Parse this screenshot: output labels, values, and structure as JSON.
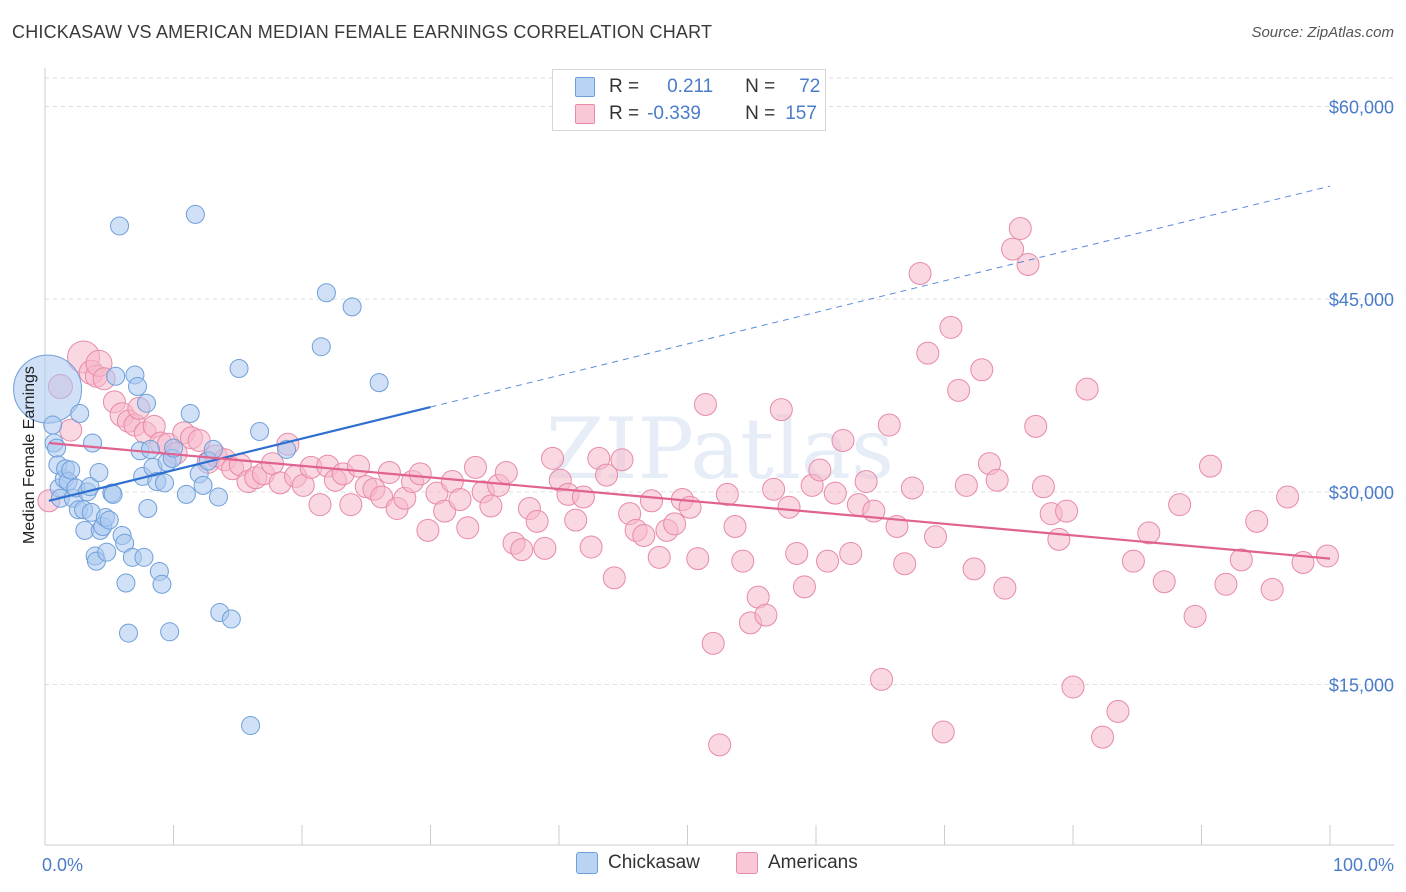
{
  "title": "CHICKASAW VS AMERICAN MEDIAN FEMALE EARNINGS CORRELATION CHART",
  "source": "Source: ZipAtlas.com",
  "watermark": "ZIPatlas",
  "legend": {
    "rows": [
      {
        "r_label": "R =",
        "r_value": "0.211",
        "n_label": "N =",
        "n_value": "72"
      },
      {
        "r_label": "R =",
        "r_value": "-0.339",
        "n_label": "N =",
        "n_value": "157"
      }
    ]
  },
  "bottom_legend": {
    "series1": "Chickasaw",
    "series2": "Americans"
  },
  "colors": {
    "chickasaw_fill": "#a9c8f0",
    "chickasaw_stroke": "#6f9fd8",
    "chickasaw_line": "#2f6fcf",
    "americans_fill": "#f6b8cb",
    "americans_stroke": "#e88aa8",
    "americans_line": "#e0628f",
    "tick_text": "#4a7cc9",
    "grid": "#dddddd"
  },
  "chart_data": {
    "type": "scatter",
    "title": "CHICKASAW VS AMERICAN MEDIAN FEMALE EARNINGS CORRELATION CHART",
    "xlabel": "",
    "ylabel": "Median Female Earnings",
    "xlim": [
      0,
      100
    ],
    "ylim": [
      2500,
      63000
    ],
    "x_tick_labels": [
      "0.0%",
      "100.0%"
    ],
    "y_ticks": [
      15000,
      30000,
      45000,
      60000
    ],
    "y_tick_labels": [
      "$15,000",
      "$30,000",
      "$45,000",
      "$60,000"
    ],
    "series": [
      {
        "name": "Chickasaw",
        "R": 0.211,
        "N": 72,
        "trend": {
          "x0": 0.3,
          "y0": 29300,
          "x1": 30,
          "y1": 36600,
          "dashed_to_x": 100,
          "dashed_to_y": 53800
        },
        "points": [
          [
            0.2,
            38000,
            34
          ],
          [
            0.6,
            35200,
            9
          ],
          [
            0.7,
            33800,
            9
          ],
          [
            0.9,
            33400,
            9
          ],
          [
            1.0,
            32100,
            9
          ],
          [
            1.1,
            30300,
            9
          ],
          [
            1.2,
            29500,
            9
          ],
          [
            1.5,
            31000,
            9
          ],
          [
            1.6,
            31800,
            9
          ],
          [
            1.8,
            30800,
            9
          ],
          [
            2.0,
            31700,
            9
          ],
          [
            2.2,
            29500,
            9
          ],
          [
            2.4,
            30300,
            9
          ],
          [
            2.6,
            28600,
            9
          ],
          [
            2.7,
            36100,
            9
          ],
          [
            3.0,
            28600,
            9
          ],
          [
            3.1,
            27000,
            9
          ],
          [
            3.3,
            30000,
            9
          ],
          [
            3.5,
            30400,
            9
          ],
          [
            3.6,
            28400,
            9
          ],
          [
            3.7,
            33800,
            9
          ],
          [
            3.9,
            25000,
            9
          ],
          [
            4.0,
            24600,
            9
          ],
          [
            4.2,
            31500,
            9
          ],
          [
            4.3,
            27000,
            9
          ],
          [
            4.5,
            27300,
            9
          ],
          [
            4.7,
            28000,
            9
          ],
          [
            4.8,
            25300,
            9
          ],
          [
            5.0,
            27800,
            9
          ],
          [
            5.2,
            29900,
            9
          ],
          [
            5.3,
            29800,
            9
          ],
          [
            5.5,
            39000,
            9
          ],
          [
            5.8,
            50700,
            9
          ],
          [
            6.0,
            26600,
            9
          ],
          [
            6.2,
            26000,
            9
          ],
          [
            6.3,
            22900,
            9
          ],
          [
            6.5,
            19000,
            9
          ],
          [
            6.8,
            24900,
            9
          ],
          [
            7.0,
            39100,
            9
          ],
          [
            7.2,
            38200,
            9
          ],
          [
            7.4,
            33200,
            9
          ],
          [
            7.6,
            31200,
            9
          ],
          [
            7.7,
            24900,
            9
          ],
          [
            7.9,
            36900,
            9
          ],
          [
            8.0,
            28700,
            9
          ],
          [
            8.2,
            33300,
            9
          ],
          [
            8.4,
            31900,
            9
          ],
          [
            8.7,
            30800,
            9
          ],
          [
            8.9,
            23800,
            9
          ],
          [
            9.1,
            22800,
            9
          ],
          [
            9.3,
            30700,
            9
          ],
          [
            9.5,
            32300,
            9
          ],
          [
            9.7,
            19100,
            9
          ],
          [
            9.9,
            32600,
            9
          ],
          [
            10.0,
            33400,
            9
          ],
          [
            11.0,
            29800,
            9
          ],
          [
            11.3,
            36100,
            9
          ],
          [
            11.7,
            51600,
            9
          ],
          [
            12.0,
            31400,
            9
          ],
          [
            12.3,
            30500,
            9
          ],
          [
            12.7,
            32400,
            9
          ],
          [
            13.1,
            33300,
            9
          ],
          [
            13.5,
            29600,
            9
          ],
          [
            13.6,
            20600,
            9
          ],
          [
            14.5,
            20100,
            9
          ],
          [
            15.1,
            39600,
            9
          ],
          [
            16.0,
            11800,
            9
          ],
          [
            16.7,
            34700,
            9
          ],
          [
            18.8,
            33300,
            9
          ],
          [
            21.5,
            41300,
            9
          ],
          [
            21.9,
            45500,
            9
          ],
          [
            23.9,
            44400,
            9
          ],
          [
            26.0,
            38500,
            9
          ]
        ]
      },
      {
        "name": "Americans",
        "R": -0.339,
        "N": 157,
        "trend": {
          "x0": 0.3,
          "y0": 33800,
          "x1": 100,
          "y1": 24800
        },
        "points": [
          [
            0.3,
            29300,
            11
          ],
          [
            1.2,
            38200,
            12
          ],
          [
            2.0,
            34800,
            11
          ],
          [
            3.0,
            40500,
            16
          ],
          [
            3.6,
            39300,
            12
          ],
          [
            4.0,
            39000,
            11
          ],
          [
            4.2,
            40000,
            13
          ],
          [
            4.6,
            38800,
            11
          ],
          [
            5.4,
            37000,
            11
          ],
          [
            6.0,
            36000,
            12
          ],
          [
            6.5,
            35500,
            11
          ],
          [
            7.0,
            35200,
            11
          ],
          [
            7.3,
            36500,
            11
          ],
          [
            7.8,
            34600,
            11
          ],
          [
            8.5,
            35100,
            11
          ],
          [
            9.0,
            33800,
            11
          ],
          [
            9.6,
            33700,
            11
          ],
          [
            10.2,
            33000,
            11
          ],
          [
            10.8,
            34600,
            11
          ],
          [
            11.4,
            34200,
            11
          ],
          [
            12.0,
            34000,
            11
          ],
          [
            12.7,
            32300,
            11
          ],
          [
            13.3,
            32800,
            11
          ],
          [
            14.0,
            32500,
            11
          ],
          [
            14.6,
            31800,
            11
          ],
          [
            15.2,
            32100,
            11
          ],
          [
            15.8,
            30800,
            11
          ],
          [
            16.4,
            31100,
            11
          ],
          [
            17.0,
            31400,
            11
          ],
          [
            17.7,
            32200,
            11
          ],
          [
            18.3,
            30700,
            11
          ],
          [
            18.9,
            33700,
            11
          ],
          [
            19.5,
            31200,
            11
          ],
          [
            20.1,
            30500,
            11
          ],
          [
            20.7,
            31900,
            11
          ],
          [
            21.4,
            29000,
            11
          ],
          [
            22.0,
            32000,
            11
          ],
          [
            22.6,
            30900,
            11
          ],
          [
            23.2,
            31400,
            11
          ],
          [
            23.8,
            29000,
            11
          ],
          [
            24.4,
            32000,
            11
          ],
          [
            25.0,
            30400,
            11
          ],
          [
            25.6,
            30200,
            11
          ],
          [
            26.2,
            29600,
            11
          ],
          [
            26.8,
            31500,
            11
          ],
          [
            27.4,
            28700,
            11
          ],
          [
            28.0,
            29500,
            11
          ],
          [
            28.6,
            30800,
            11
          ],
          [
            29.2,
            31400,
            11
          ],
          [
            29.8,
            27000,
            11
          ],
          [
            30.5,
            29900,
            11
          ],
          [
            31.1,
            28500,
            11
          ],
          [
            31.7,
            30800,
            11
          ],
          [
            32.3,
            29400,
            11
          ],
          [
            32.9,
            27200,
            11
          ],
          [
            33.5,
            31900,
            11
          ],
          [
            34.1,
            30000,
            11
          ],
          [
            34.7,
            28900,
            11
          ],
          [
            35.3,
            30500,
            11
          ],
          [
            35.9,
            31500,
            11
          ],
          [
            36.5,
            26000,
            11
          ],
          [
            37.1,
            25500,
            11
          ],
          [
            37.7,
            28700,
            11
          ],
          [
            38.3,
            27700,
            11
          ],
          [
            38.9,
            25600,
            11
          ],
          [
            39.5,
            32600,
            11
          ],
          [
            40.1,
            30900,
            11
          ],
          [
            40.7,
            29800,
            11
          ],
          [
            41.3,
            27800,
            11
          ],
          [
            41.9,
            29600,
            11
          ],
          [
            42.5,
            25700,
            11
          ],
          [
            43.1,
            32600,
            11
          ],
          [
            43.7,
            31300,
            11
          ],
          [
            44.3,
            23300,
            11
          ],
          [
            44.9,
            32500,
            11
          ],
          [
            45.5,
            28300,
            11
          ],
          [
            46.0,
            27000,
            11
          ],
          [
            46.6,
            26600,
            11
          ],
          [
            47.2,
            29300,
            11
          ],
          [
            47.8,
            24900,
            11
          ],
          [
            48.4,
            27000,
            11
          ],
          [
            49.0,
            27500,
            11
          ],
          [
            49.6,
            29400,
            11
          ],
          [
            50.2,
            28800,
            11
          ],
          [
            50.8,
            24800,
            11
          ],
          [
            51.4,
            36800,
            11
          ],
          [
            52.0,
            18200,
            11
          ],
          [
            52.5,
            10300,
            11
          ],
          [
            53.1,
            29800,
            11
          ],
          [
            53.7,
            27300,
            11
          ],
          [
            54.3,
            24600,
            11
          ],
          [
            54.9,
            19800,
            11
          ],
          [
            55.5,
            21800,
            11
          ],
          [
            56.1,
            20400,
            11
          ],
          [
            56.7,
            30200,
            11
          ],
          [
            57.3,
            36400,
            11
          ],
          [
            57.9,
            28800,
            11
          ],
          [
            58.5,
            25200,
            11
          ],
          [
            59.1,
            22600,
            11
          ],
          [
            59.7,
            30500,
            11
          ],
          [
            60.3,
            31700,
            11
          ],
          [
            60.9,
            24600,
            11
          ],
          [
            61.5,
            29900,
            11
          ],
          [
            62.1,
            34000,
            11
          ],
          [
            62.7,
            25200,
            11
          ],
          [
            63.3,
            29000,
            11
          ],
          [
            63.9,
            30800,
            11
          ],
          [
            64.5,
            28500,
            11
          ],
          [
            65.1,
            15400,
            11
          ],
          [
            65.7,
            35200,
            11
          ],
          [
            66.3,
            27300,
            11
          ],
          [
            66.9,
            24400,
            11
          ],
          [
            67.5,
            30300,
            11
          ],
          [
            68.1,
            47000,
            11
          ],
          [
            68.7,
            40800,
            11
          ],
          [
            69.3,
            26500,
            11
          ],
          [
            69.9,
            11300,
            11
          ],
          [
            70.5,
            42800,
            11
          ],
          [
            71.1,
            37900,
            11
          ],
          [
            71.7,
            30500,
            11
          ],
          [
            72.3,
            24000,
            11
          ],
          [
            72.9,
            39500,
            11
          ],
          [
            73.5,
            32200,
            11
          ],
          [
            74.1,
            30900,
            11
          ],
          [
            74.7,
            22500,
            11
          ],
          [
            75.3,
            48900,
            11
          ],
          [
            75.9,
            50500,
            11
          ],
          [
            76.5,
            47700,
            11
          ],
          [
            77.1,
            35100,
            11
          ],
          [
            77.7,
            30400,
            11
          ],
          [
            78.3,
            28300,
            11
          ],
          [
            78.9,
            26300,
            11
          ],
          [
            79.5,
            28500,
            11
          ],
          [
            80.0,
            14800,
            11
          ],
          [
            81.1,
            38000,
            11
          ],
          [
            82.3,
            10900,
            11
          ],
          [
            83.5,
            12900,
            11
          ],
          [
            84.7,
            24600,
            11
          ],
          [
            85.9,
            26800,
            11
          ],
          [
            87.1,
            23000,
            11
          ],
          [
            88.3,
            29000,
            11
          ],
          [
            89.5,
            20300,
            11
          ],
          [
            90.7,
            32000,
            11
          ],
          [
            91.9,
            22800,
            11
          ],
          [
            93.1,
            24700,
            11
          ],
          [
            94.3,
            27700,
            11
          ],
          [
            95.5,
            22400,
            11
          ],
          [
            96.7,
            29600,
            11
          ],
          [
            97.9,
            24500,
            11
          ],
          [
            99.8,
            25000,
            11
          ]
        ]
      }
    ]
  }
}
